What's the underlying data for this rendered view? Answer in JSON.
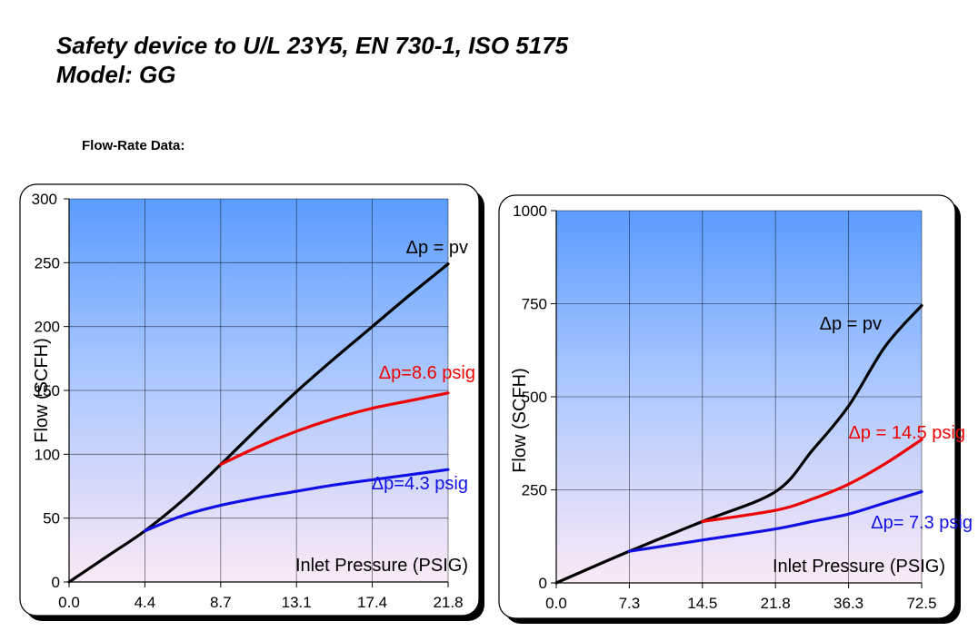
{
  "header": {
    "title_line1": "Safety device to U/L 23Y5,  EN 730-1, ISO 5175",
    "title_line2": "Model: GG",
    "section_label": "Flow-Rate Data:"
  },
  "colors": {
    "black_series": "#000000",
    "red_series": "#ee0000",
    "blue_series": "#1010e6",
    "plot_top": "#5b9cff",
    "plot_bottom": "#fbe9f6"
  },
  "chart_data": [
    {
      "type": "line",
      "xlabel": "Inlet Pressure (PSIG)",
      "ylabel": "Flow  (SCFH)",
      "x_ticks": [
        "0.0",
        "4.4",
        "8.7",
        "13.1",
        "17.4",
        "21.8"
      ],
      "y_ticks": [
        "0",
        "50",
        "100",
        "150",
        "200",
        "250",
        "300"
      ],
      "ylim": [
        0,
        300
      ],
      "grid": true,
      "series": [
        {
          "name": "Δp = pv",
          "color": "#000000",
          "x": [
            0.0,
            2.2,
            4.4,
            6.55,
            8.7,
            10.9,
            13.1,
            15.25,
            17.4,
            19.6,
            21.8
          ],
          "y": [
            0,
            20,
            40,
            64,
            92,
            121,
            149,
            175,
            200,
            225,
            249
          ]
        },
        {
          "name": "Δp=8.6 psig",
          "color": "#ee0000",
          "x": [
            8.7,
            10.9,
            13.1,
            15.25,
            17.4,
            19.6,
            21.8
          ],
          "y": [
            92,
            106,
            118,
            128,
            136,
            142,
            148
          ]
        },
        {
          "name": "Δp=4.3 psig",
          "color": "#1010e6",
          "x": [
            4.4,
            6.55,
            8.7,
            10.9,
            13.1,
            15.25,
            17.4,
            19.6,
            21.8
          ],
          "y": [
            40,
            52,
            60,
            66,
            71,
            76,
            80,
            84,
            88
          ]
        }
      ]
    },
    {
      "type": "line",
      "xlabel": "Inlet Pressure (PSIG)",
      "ylabel": "Flow (SCFH)",
      "x_ticks": [
        "0.0",
        "7.3",
        "14.5",
        "21.8",
        "36.3",
        "72.5"
      ],
      "y_ticks": [
        "0",
        "250",
        "500",
        "750",
        "1000"
      ],
      "ylim": [
        0,
        1000
      ],
      "grid": true,
      "series": [
        {
          "name": "Δp = pv",
          "color": "#000000",
          "x": [
            0.0,
            7.3,
            14.5,
            21.8,
            29.05,
            36.3,
            54.4,
            72.5
          ],
          "y": [
            0,
            85,
            165,
            245,
            355,
            475,
            635,
            745
          ]
        },
        {
          "name": "Δp = 14.5 psig",
          "color": "#ee0000",
          "x": [
            14.5,
            21.8,
            29.05,
            36.3,
            54.4,
            72.5
          ],
          "y": [
            165,
            195,
            225,
            265,
            320,
            385
          ]
        },
        {
          "name": "Δp= 7.3 psig",
          "color": "#1010e6",
          "x": [
            7.3,
            14.5,
            21.8,
            29.05,
            36.3,
            54.4,
            72.5
          ],
          "y": [
            85,
            115,
            145,
            165,
            185,
            215,
            245
          ]
        }
      ]
    }
  ]
}
